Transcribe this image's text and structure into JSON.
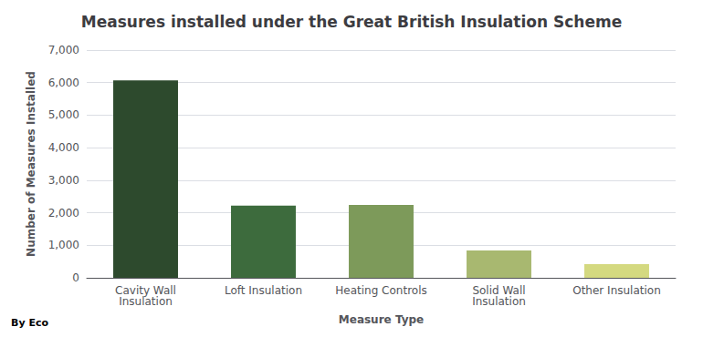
{
  "chart_data": {
    "type": "bar",
    "title": "Measures installed under the Great British Insulation Scheme",
    "categories": [
      "Cavity Wall\nInsulation",
      "Loft Insulation",
      "Heating Controls",
      "Solid Wall\nInsulation",
      "Other Insulation"
    ],
    "values": [
      6070,
      2220,
      2240,
      840,
      420
    ],
    "colors": [
      "#2d4a2d",
      "#3d6b3d",
      "#7d9a5a",
      "#a8b870",
      "#d4d980"
    ],
    "xlabel": "Measure Type",
    "ylabel": "Number of Measures Installed",
    "ylim": [
      0,
      7000
    ],
    "yticks": [
      0,
      {
        "value": 1000,
        "label": "1,000"
      },
      {
        "value": 2000,
        "label": "2,000"
      },
      {
        "value": 3000,
        "label": "3,000"
      },
      {
        "value": 4000,
        "label": "4,000"
      },
      {
        "value": 5000,
        "label": "5,000"
      },
      {
        "value": 6000,
        "label": "6,000"
      },
      {
        "value": 7000,
        "label": "7,000"
      }
    ],
    "grid": true,
    "annotation": "By Eco"
  }
}
